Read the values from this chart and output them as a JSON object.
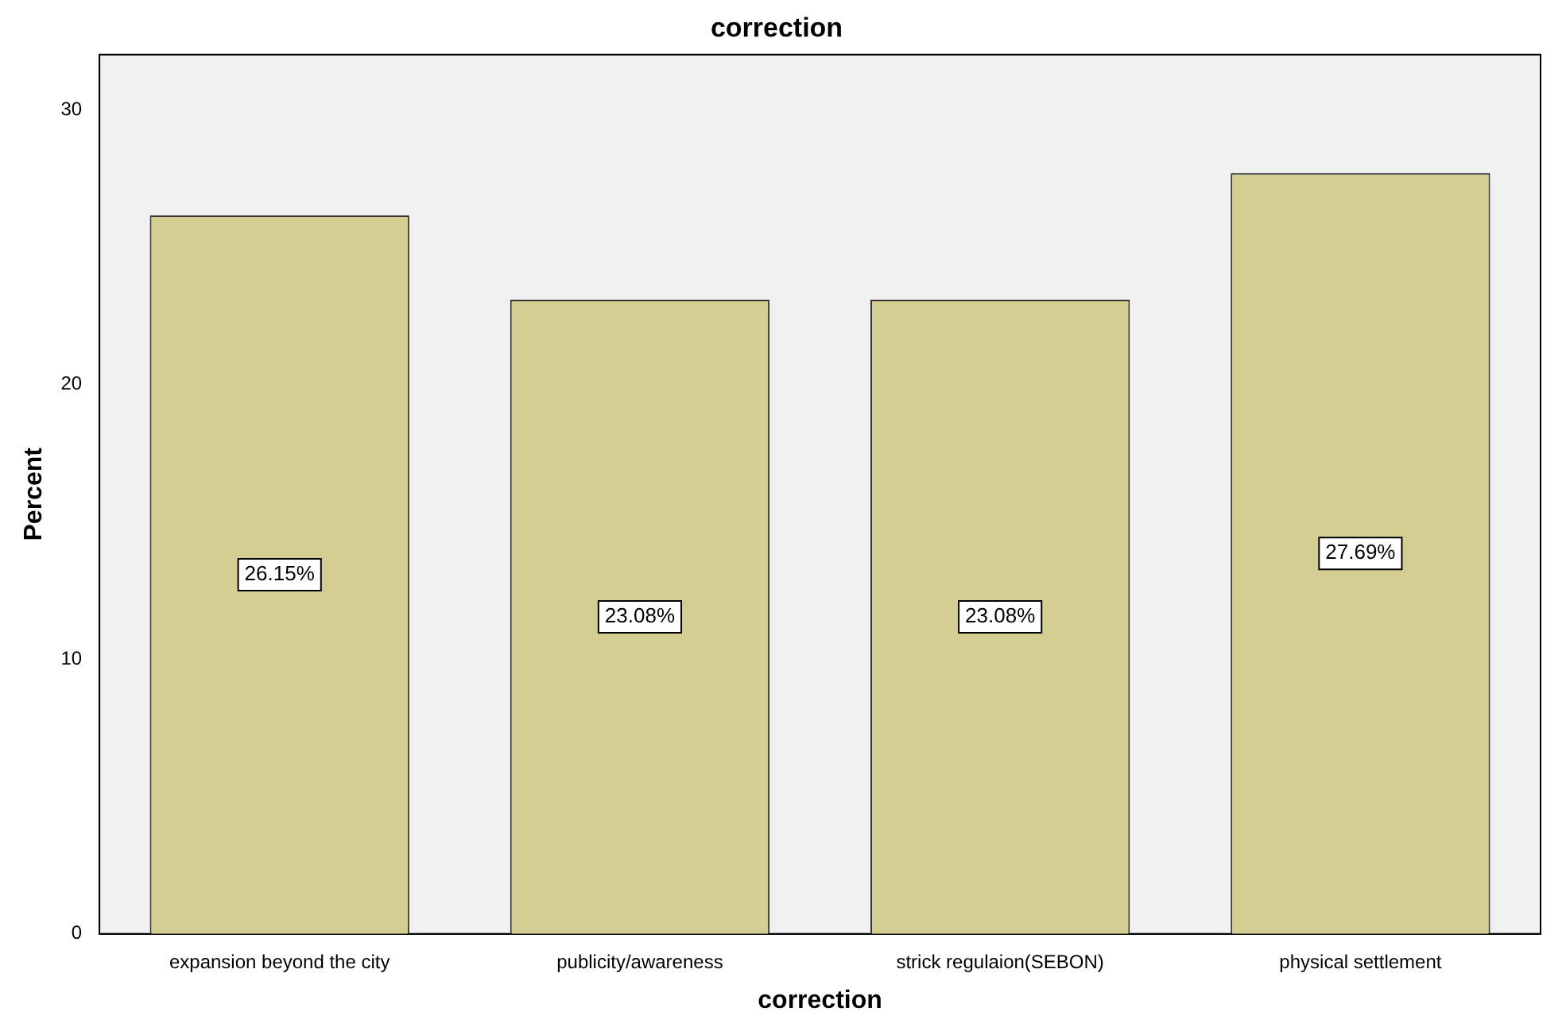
{
  "chart_data": {
    "type": "bar",
    "title": "correction",
    "xlabel": "correction",
    "ylabel": "Percent",
    "categories": [
      "expansion beyond the city",
      "publicity/awareness",
      "strick regulaion(SEBON)",
      "physical settlement"
    ],
    "values": [
      26.15,
      23.08,
      23.08,
      27.69
    ],
    "value_labels": [
      "26.15%",
      "23.08%",
      "23.08%",
      "27.69%"
    ],
    "color": "#d3cd92",
    "ylim": [
      0,
      32
    ],
    "yticks": [
      0,
      10,
      20,
      30
    ],
    "grid": false,
    "legend": false
  }
}
